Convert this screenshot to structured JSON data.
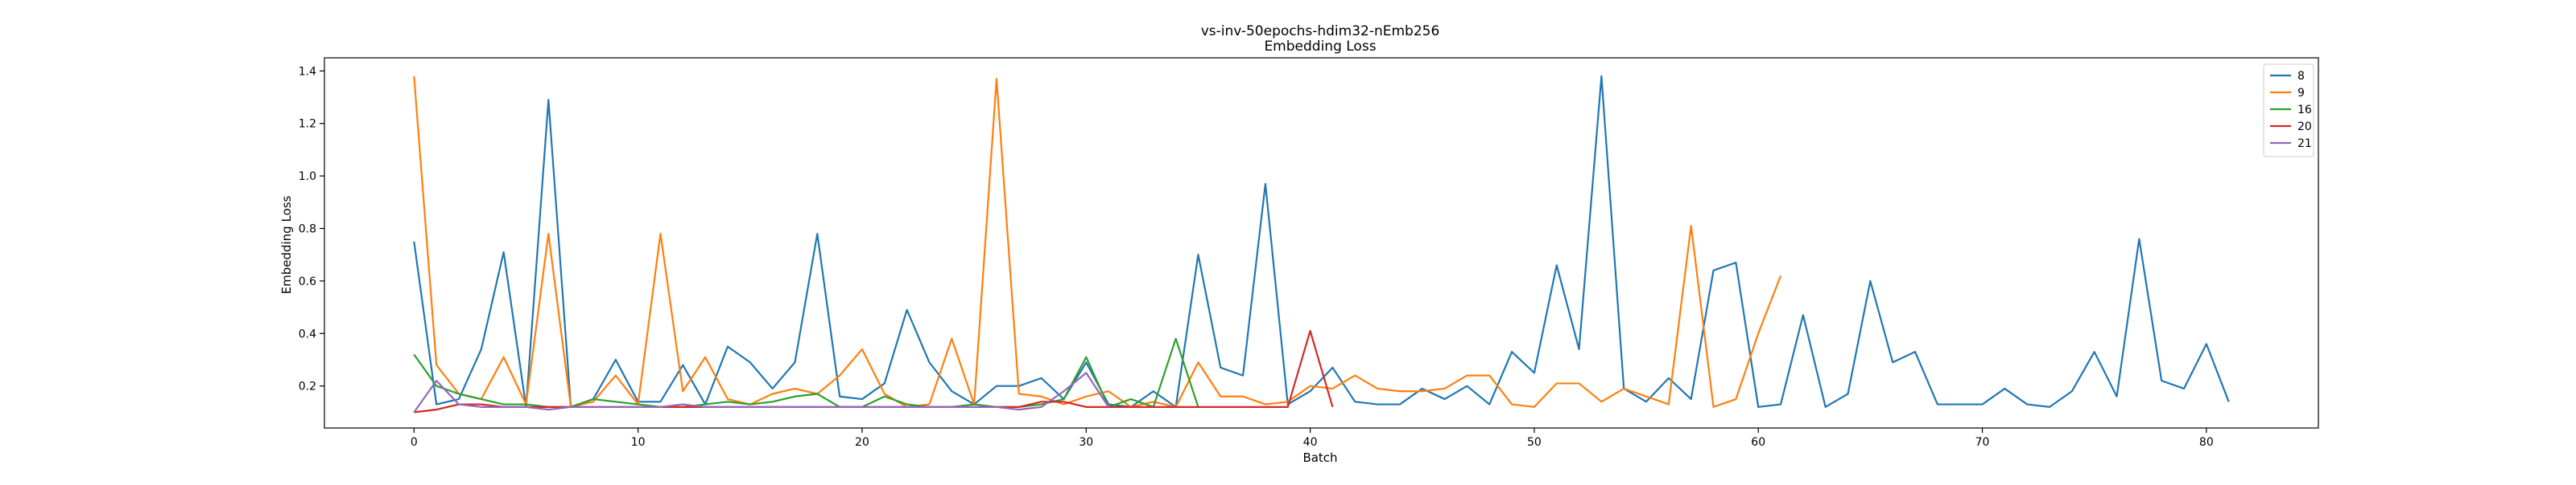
{
  "chart_data": {
    "type": "line",
    "title": "vs-inv-50epochs-hdim32-nEmb256",
    "subtitle": "Embedding Loss",
    "xlabel": "Batch",
    "ylabel": "Embedding Loss",
    "xlim": [
      -4,
      85
    ],
    "ylim": [
      0.04,
      1.45
    ],
    "xticks": [
      0,
      10,
      20,
      30,
      40,
      50,
      60,
      70,
      80
    ],
    "yticks": [
      0.2,
      0.4,
      0.6,
      0.8,
      1.0,
      1.2,
      1.4
    ],
    "ytick_labels": [
      "0.2",
      "0.4",
      "0.6",
      "0.8",
      "1.0",
      "1.2",
      "1.4"
    ],
    "grid": false,
    "legend_position": "top-right",
    "series": [
      {
        "name": "8",
        "color": "#1f77b4",
        "values": [
          0.75,
          0.13,
          0.15,
          0.34,
          0.71,
          0.12,
          1.29,
          0.12,
          0.15,
          0.3,
          0.14,
          0.14,
          0.28,
          0.13,
          0.35,
          0.29,
          0.19,
          0.29,
          0.78,
          0.16,
          0.15,
          0.21,
          0.49,
          0.29,
          0.18,
          0.13,
          0.2,
          0.2,
          0.23,
          0.15,
          0.29,
          0.13,
          0.12,
          0.18,
          0.12,
          0.7,
          0.27,
          0.24,
          0.97,
          0.13,
          0.18,
          0.27,
          0.14,
          0.13,
          0.13,
          0.19,
          0.15,
          0.2,
          0.13,
          0.33,
          0.25,
          0.66,
          0.34,
          1.38,
          0.19,
          0.14,
          0.23,
          0.15,
          0.64,
          0.67,
          0.12,
          0.13,
          0.47,
          0.12,
          0.17,
          0.6,
          0.29,
          0.33,
          0.13,
          0.13,
          0.13,
          0.19,
          0.13,
          0.12,
          0.18,
          0.33,
          0.16,
          0.76,
          0.22,
          0.19,
          0.36,
          0.14
        ]
      },
      {
        "name": "9",
        "color": "#ff7f0e",
        "values": [
          1.38,
          0.28,
          0.17,
          0.15,
          0.31,
          0.13,
          0.78,
          0.12,
          0.14,
          0.24,
          0.13,
          0.78,
          0.18,
          0.31,
          0.15,
          0.13,
          0.17,
          0.19,
          0.17,
          0.24,
          0.34,
          0.17,
          0.12,
          0.13,
          0.38,
          0.13,
          1.37,
          0.17,
          0.16,
          0.13,
          0.16,
          0.18,
          0.12,
          0.14,
          0.12,
          0.29,
          0.16,
          0.16,
          0.13,
          0.14,
          0.2,
          0.19,
          0.24,
          0.19,
          0.18,
          0.18,
          0.19,
          0.24,
          0.24,
          0.13,
          0.12,
          0.21,
          0.21,
          0.14,
          0.19,
          0.16,
          0.13,
          0.81,
          0.12,
          0.15,
          0.4,
          0.62
        ]
      },
      {
        "name": "16",
        "color": "#2ca02c",
        "values": [
          0.32,
          0.2,
          0.17,
          0.15,
          0.13,
          0.13,
          0.12,
          0.12,
          0.15,
          0.14,
          0.13,
          0.12,
          0.12,
          0.13,
          0.14,
          0.13,
          0.14,
          0.16,
          0.17,
          0.12,
          0.12,
          0.16,
          0.13,
          0.12,
          0.12,
          0.13,
          0.12,
          0.12,
          0.13,
          0.15,
          0.31,
          0.12,
          0.15,
          0.12,
          0.38,
          0.12
        ]
      },
      {
        "name": "20",
        "color": "#d62728",
        "values": [
          0.1,
          0.11,
          0.13,
          0.13,
          0.12,
          0.12,
          0.12,
          0.12,
          0.12,
          0.12,
          0.12,
          0.12,
          0.12,
          0.12,
          0.12,
          0.12,
          0.12,
          0.12,
          0.12,
          0.12,
          0.12,
          0.12,
          0.12,
          0.12,
          0.12,
          0.12,
          0.12,
          0.12,
          0.14,
          0.14,
          0.12,
          0.12,
          0.12,
          0.12,
          0.12,
          0.12,
          0.12,
          0.12,
          0.12,
          0.12,
          0.41,
          0.12
        ]
      },
      {
        "name": "21",
        "color": "#9467bd",
        "values": [
          0.1,
          0.22,
          0.13,
          0.12,
          0.12,
          0.12,
          0.11,
          0.12,
          0.12,
          0.12,
          0.12,
          0.12,
          0.13,
          0.12,
          0.12,
          0.12,
          0.12,
          0.12,
          0.12,
          0.12,
          0.12,
          0.12,
          0.12,
          0.12,
          0.12,
          0.12,
          0.12,
          0.11,
          0.12,
          0.18,
          0.25,
          0.12
        ]
      }
    ]
  }
}
